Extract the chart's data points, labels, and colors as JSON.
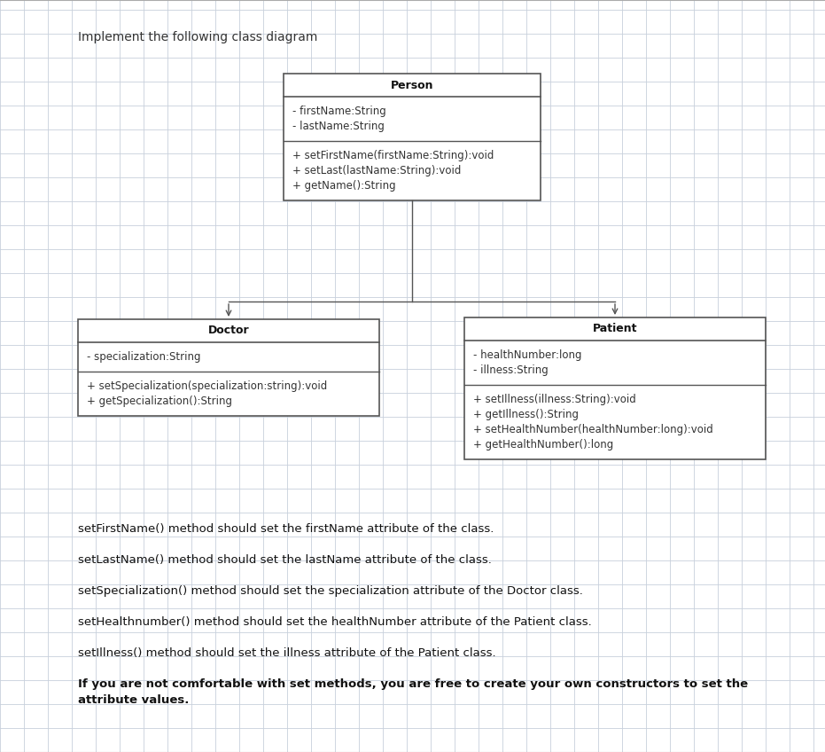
{
  "title": "Implement the following class diagram",
  "bg_color": "#ffffff",
  "grid_color": "#c8d0dc",
  "person": {
    "name": "Person",
    "attributes": [
      "- firstName:String",
      "- lastName:String"
    ],
    "methods": [
      "+ setFirstName(firstName:String):void",
      "+ setLast(lastName:String):void",
      "+ getName():String"
    ]
  },
  "doctor": {
    "name": "Doctor",
    "attributes": [
      "- specialization:String"
    ],
    "methods": [
      "+ setSpecialization(specialization:string):void",
      "+ getSpecialization():String"
    ]
  },
  "patient": {
    "name": "Patient",
    "attributes": [
      "- healthNumber:long",
      "- illness:String"
    ],
    "methods": [
      "+ setIllness(illness:String):void",
      "+ getIllness():String",
      "+ setHealthNumber(healthNumber:long):void",
      "+ getHealthNumber():long"
    ]
  },
  "text_lines": [
    {
      "text": "setFirstName() method should set the firstName attribute of the class.",
      "bold": false
    },
    {
      "text": "setLastName() method should set the lastName attribute of the class.",
      "bold": false
    },
    {
      "text": "setSpecialization() method should set the specialization attribute of the Doctor class.",
      "bold": false
    },
    {
      "text": "setHealthnumber() method should set the healthNumber attribute of the Patient class.",
      "bold": false
    },
    {
      "text": "setIllness() method should set the illness attribute of the Patient class.",
      "bold": false
    },
    {
      "text": "If you are not comfortable with set methods, you are free to create your own constructors to set the attribute values.",
      "bold": true
    }
  ]
}
